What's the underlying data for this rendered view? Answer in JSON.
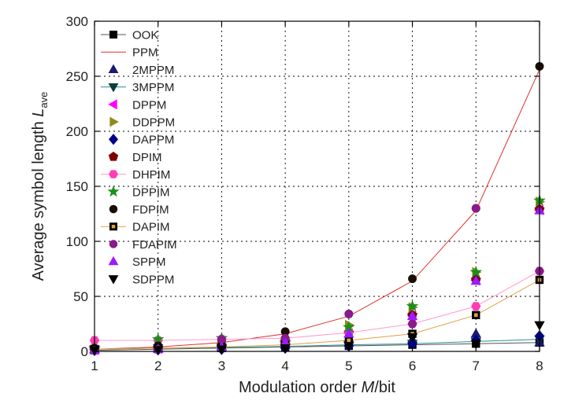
{
  "chart_data": {
    "type": "scatter",
    "xlabel_parts": [
      "Modulation order ",
      "M",
      "/bit"
    ],
    "ylabel_parts": [
      "Average symbol length ",
      "L",
      "ave"
    ],
    "xlim": [
      1,
      8
    ],
    "ylim": [
      0,
      300
    ],
    "xticks": [
      1,
      2,
      3,
      4,
      5,
      6,
      7,
      8
    ],
    "yticks": [
      0,
      50,
      100,
      150,
      200,
      250,
      300
    ],
    "grid": true,
    "legend_position": "top-left",
    "series": [
      {
        "name": "OOK",
        "marker": "square",
        "color": "#000000",
        "line": true,
        "line_color": "#555555",
        "x": [
          1,
          2,
          3,
          4,
          5,
          6,
          7,
          8
        ],
        "y": [
          1,
          2,
          3,
          4,
          5,
          6,
          7,
          8
        ]
      },
      {
        "name": "PPM",
        "marker": "none",
        "color": "#e0302a",
        "line": true,
        "line_color": "#e0302a",
        "x": [
          1,
          2,
          3,
          4,
          5,
          6,
          7,
          8
        ],
        "y": [
          2,
          4,
          8,
          16,
          32,
          64,
          128,
          256
        ]
      },
      {
        "name": "2MPPM",
        "marker": "triangle-up",
        "color": "#1a1a6e",
        "line": false,
        "x": [
          1,
          2,
          3,
          4,
          5,
          6,
          7,
          8
        ],
        "y": [
          2,
          3,
          4,
          6,
          8,
          11,
          16,
          8
        ]
      },
      {
        "name": "3MPPM",
        "marker": "triangle-down",
        "color": "#0a3d3d",
        "line": true,
        "line_color": "#2a9090",
        "x": [
          1,
          2,
          3,
          4,
          5,
          6,
          7,
          8
        ],
        "y": [
          2,
          3,
          3.5,
          4.5,
          6,
          7,
          9,
          11
        ]
      },
      {
        "name": "DPPM",
        "marker": "triangle-left",
        "color": "#ff00ff",
        "line": false,
        "x": [
          1,
          2,
          3,
          4,
          5,
          6,
          7,
          8
        ],
        "y": [
          1.5,
          2.5,
          4.5,
          8.5,
          16.5,
          32.5,
          64.5,
          128.5
        ]
      },
      {
        "name": "DDPPM",
        "marker": "triangle-right",
        "color": "#8f8a1c",
        "line": false,
        "x": [
          1,
          2,
          3,
          4,
          5,
          6,
          7,
          8
        ],
        "y": [
          2,
          3,
          5,
          7,
          24,
          40,
          72,
          136
        ]
      },
      {
        "name": "DAPPM",
        "marker": "diamond",
        "color": "#00008b",
        "line": false,
        "x": [
          1,
          2,
          3,
          4,
          5,
          6,
          7,
          8
        ],
        "y": [
          1,
          1.5,
          2,
          3,
          5,
          7,
          10,
          14
        ]
      },
      {
        "name": "DPIM",
        "marker": "pentagon",
        "color": "#800000",
        "line": false,
        "x": [
          1,
          2,
          3,
          4,
          5,
          6,
          7,
          8
        ],
        "y": [
          2,
          3,
          5,
          9,
          17,
          33,
          65,
          129
        ]
      },
      {
        "name": "DHPIM",
        "marker": "hexagon",
        "color": "#ff3db4",
        "line": true,
        "line_color": "#ff99cc",
        "x": [
          1,
          2,
          3,
          4,
          5,
          6,
          7,
          8
        ],
        "y": [
          10,
          10,
          11,
          12,
          17,
          25,
          41,
          73
        ]
      },
      {
        "name": "DPPIM",
        "marker": "star",
        "color": "#1a8f1a",
        "line": false,
        "x": [
          1,
          2,
          3,
          4,
          5,
          6,
          7,
          8
        ],
        "y": [
          3,
          11,
          12,
          8,
          22,
          41,
          72,
          137
        ]
      },
      {
        "name": "FDPIM",
        "marker": "circle",
        "color": "#1a0d00",
        "line": false,
        "x": [
          1,
          2,
          3,
          4,
          5,
          6,
          7,
          8
        ],
        "y": [
          3,
          5,
          10,
          18,
          34,
          66,
          130,
          259
        ]
      },
      {
        "name": "DAPIM",
        "marker": "square-open",
        "color": "#000000",
        "line": true,
        "line_color": "#e0a040",
        "x": [
          1,
          2,
          3,
          4,
          5,
          6,
          7,
          8
        ],
        "y": [
          2,
          3,
          4,
          6,
          10,
          16,
          33,
          65
        ]
      },
      {
        "name": "FDAPIM",
        "marker": "circle",
        "color": "#8b1a8b",
        "line": false,
        "x": [
          1,
          2,
          3,
          4,
          5,
          6,
          7,
          8
        ],
        "y": [
          1,
          2,
          11,
          12,
          34,
          25,
          130,
          73
        ]
      },
      {
        "name": "SPPM",
        "marker": "triangle-up",
        "color": "#9c1aff",
        "line": false,
        "x": [
          1,
          2,
          3,
          4,
          5,
          6,
          7,
          8
        ],
        "y": [
          1,
          2,
          4,
          8,
          16,
          32,
          64,
          128
        ]
      },
      {
        "name": "SDPPM",
        "marker": "triangle-down",
        "color": "#000000",
        "line": false,
        "x": [
          1,
          2,
          3,
          4,
          5,
          6,
          7,
          8
        ],
        "y": [
          1,
          1.5,
          2,
          3,
          5,
          13,
          7,
          24
        ]
      }
    ]
  }
}
